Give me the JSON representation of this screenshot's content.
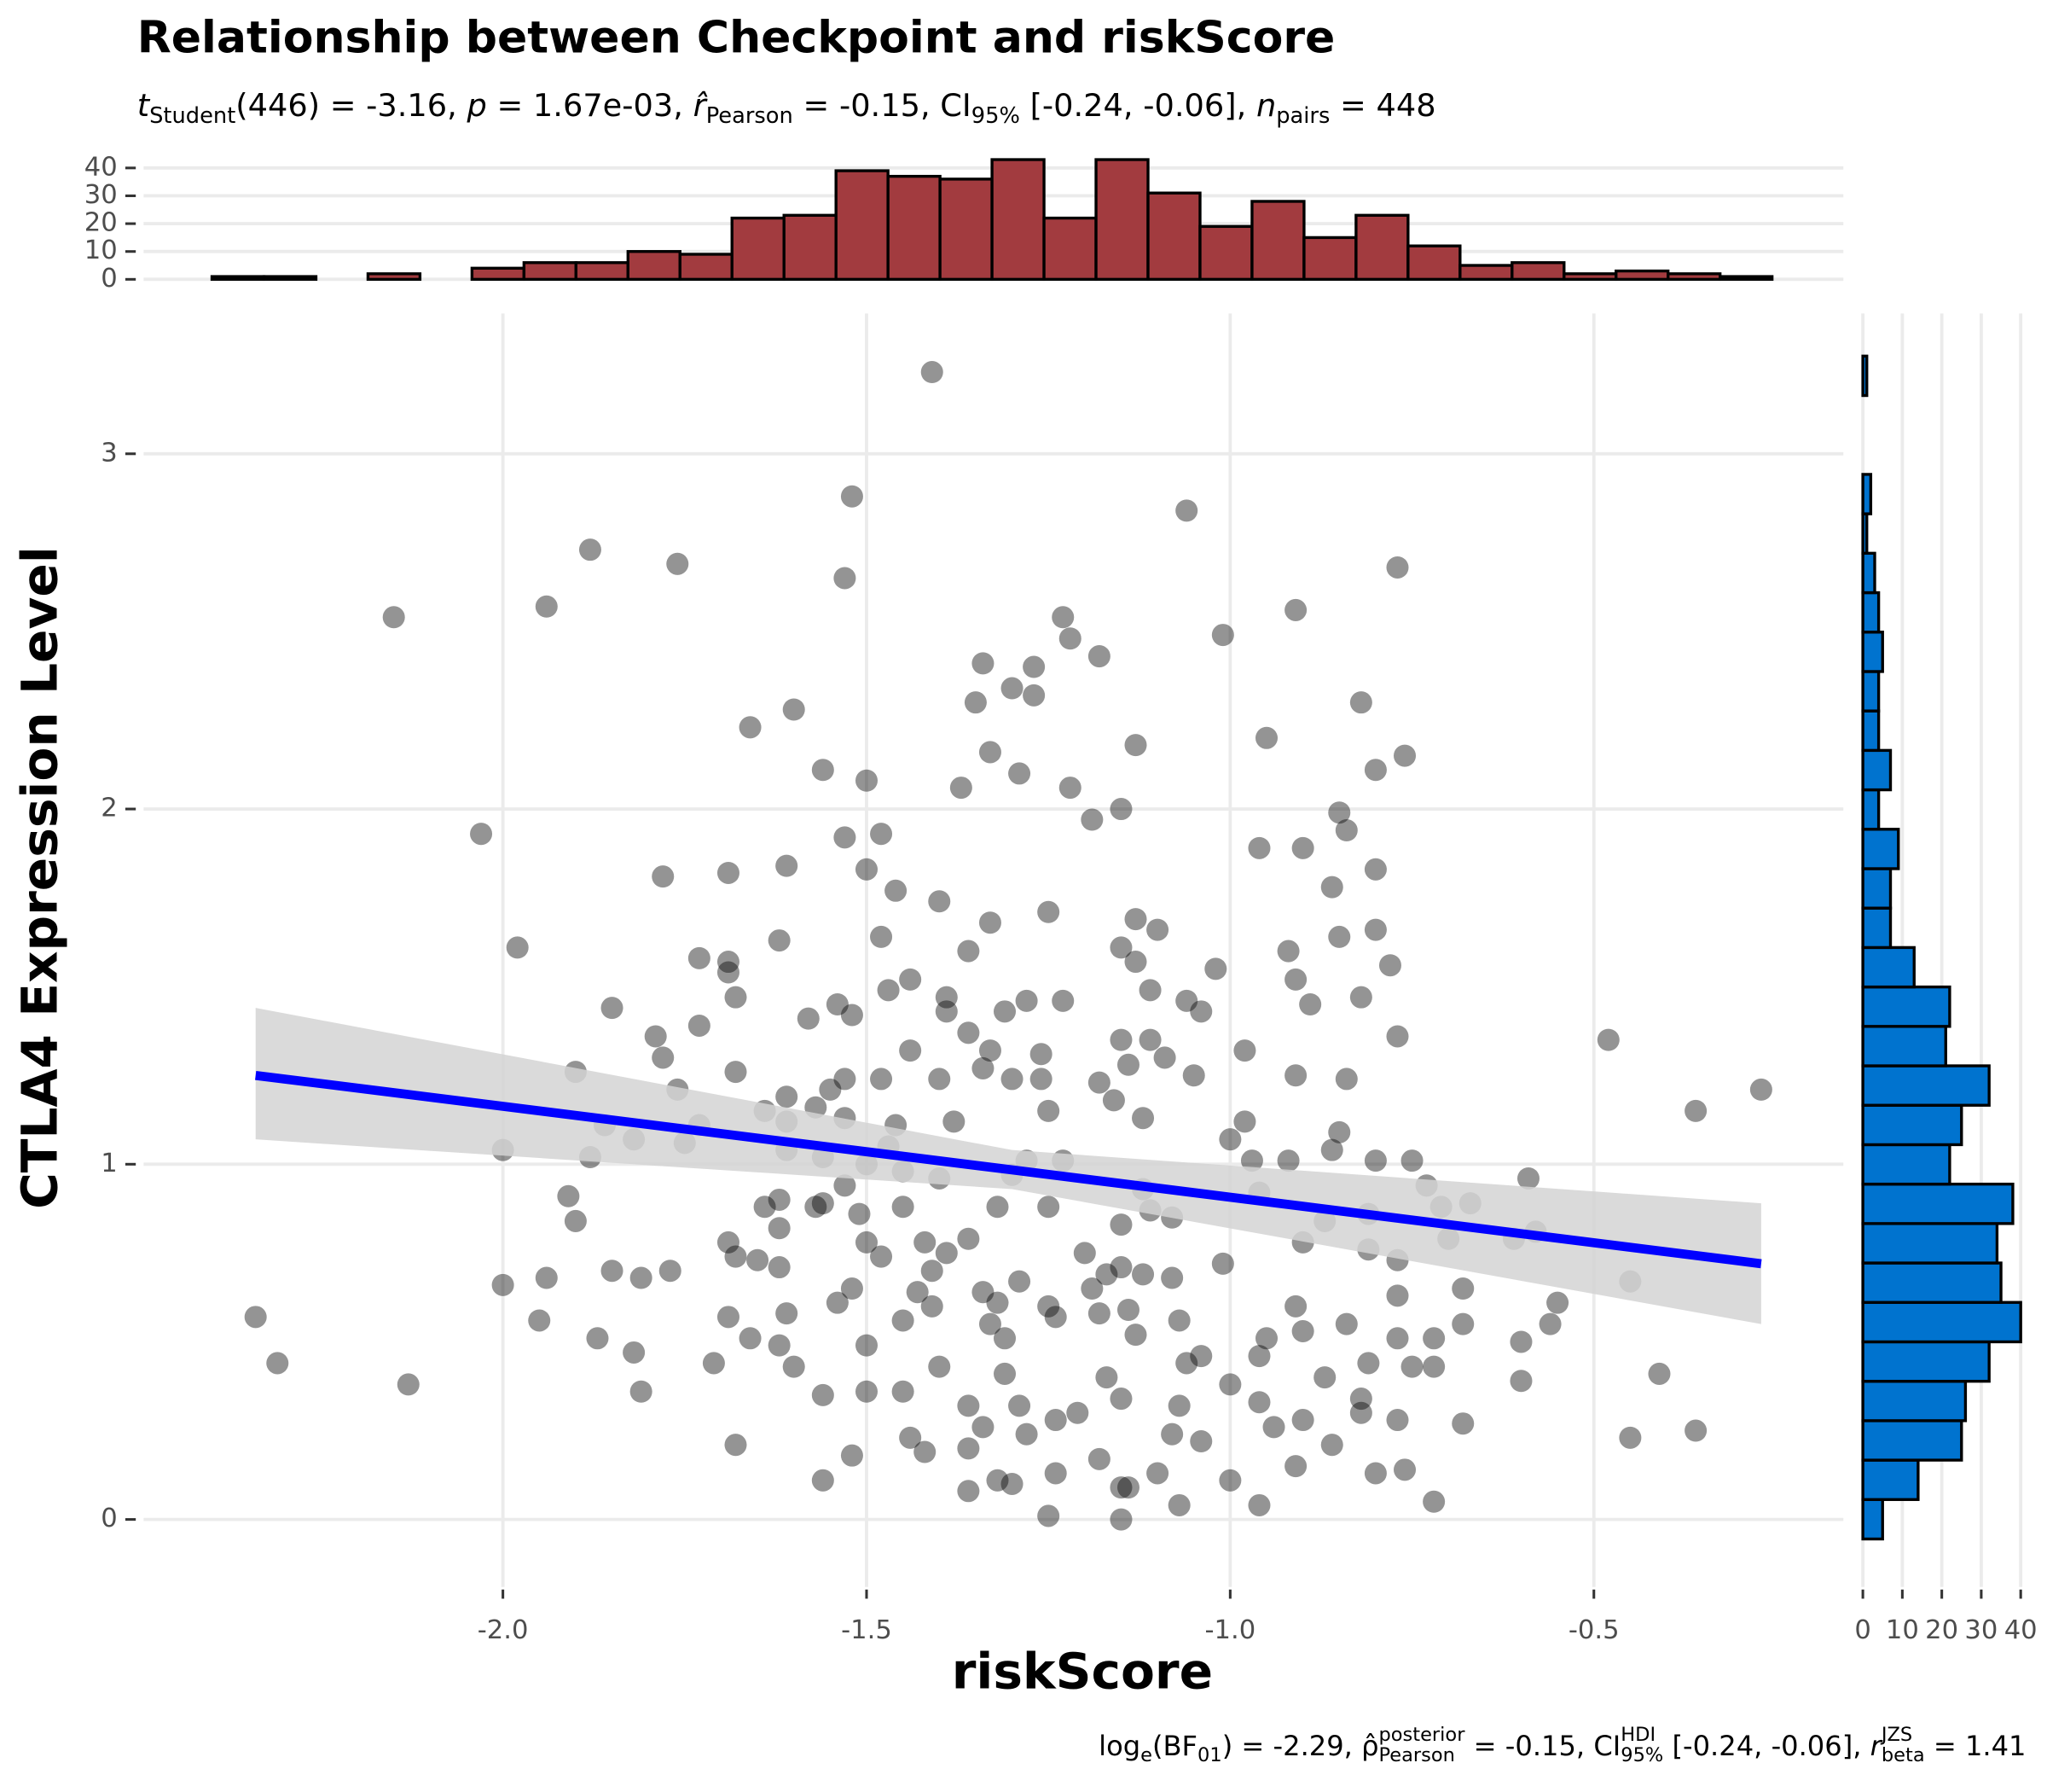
{
  "chart_data": [
    {
      "type": "scatter",
      "title": "Relationship between Checkpoint and riskScore",
      "subtitle": [
        {
          "t": "t",
          "i": true
        },
        {
          "t": "Student",
          "sub": true
        },
        {
          "t": "(446) = -3.16, "
        },
        {
          "t": "p",
          "i": true
        },
        {
          "t": " = 1.67e-03, "
        },
        {
          "t": "r̂",
          "i": true
        },
        {
          "t": "Pearson",
          "sub": true
        },
        {
          "t": " = -0.15, CI"
        },
        {
          "t": "95%",
          "sub": true
        },
        {
          "t": " [-0.24, -0.06], "
        },
        {
          "t": "n",
          "i": true
        },
        {
          "t": "pairs",
          "sub": true
        },
        {
          "t": " = 448"
        }
      ],
      "caption": [
        {
          "t": "log"
        },
        {
          "t": "e",
          "sub": true
        },
        {
          "t": "(BF"
        },
        {
          "t": "01",
          "sub": true
        },
        {
          "t": ") = -2.29, ρ̂"
        },
        {
          "t": "posterior",
          "sup": true
        },
        {
          "t": "Pearson",
          "sub": true,
          "stack": true
        },
        {
          "t": " = -0.15, CI"
        },
        {
          "t": "HDI",
          "sup": true
        },
        {
          "t": "95%",
          "sub": true,
          "stack": true
        },
        {
          "t": " [-0.24, -0.06], "
        },
        {
          "t": "r",
          "i": true
        },
        {
          "t": "JZS",
          "sup": true
        },
        {
          "t": "beta",
          "sub": true,
          "stack": true
        },
        {
          "t": " = 1.41"
        }
      ],
      "xlabel": "riskScore",
      "ylabel": "CTLA4 Expression Level",
      "color": "#000000",
      "x": [
        -1.41,
        -1.52,
        -1.06,
        -1.88,
        -1.76,
        -0.77,
        -1.53,
        -2.15,
        -1.94,
        -0.91,
        -1.23,
        -1.01,
        -1.22,
        -1.18,
        -1.34,
        -1.27,
        -1.3,
        -1.27,
        -1.35,
        -0.82,
        -1.6,
        -1.66,
        -0.95,
        -1.13,
        -1.33,
        -0.76,
        -0.8,
        -1.56,
        -1.5,
        -1.29,
        -1.37,
        -1.22,
        -1.15,
        -1.19,
        -0.85,
        -2.03,
        -1.48,
        -1.53,
        -0.84,
        -0.96,
        -0.9,
        -1.61,
        -1.5,
        -1.69,
        -0.8,
        -1.78,
        -1.46,
        -0.86,
        -1.4,
        -1.25,
        -1.13,
        -1.33,
        -1.1,
        -0.8,
        -1.98,
        -1.62,
        -1.48,
        -0.85,
        -1.36,
        -1.15,
        -0.92,
        -1.73,
        -1.69,
        -1.13,
        -0.78,
        -1.02,
        -1.44,
        -0.91,
        -1.69,
        -1.47,
        -1.68,
        -1.11,
        -1.39,
        -1.28,
        -1.23,
        -0.82,
        -1.54,
        -1.06,
        -1.85,
        -1.52,
        -1.39,
        -1.31,
        -1.04,
        -0.89,
        -1.58,
        -1.73,
        -1.36,
        -0.48,
        -1.79,
        -0.77,
        -1.15,
        -1.11,
        -0.98,
        -1.78,
        -1.44,
        -1.33,
        -1.26,
        -1.09,
        -1.14,
        -1.34,
        -1.9,
        -1.68,
        -0.91,
        -0.27,
        -1.05,
        -1.3,
        -1.4,
        -1.53,
        -1.48,
        -0.84,
        -1.26,
        -1.18,
        -1.76,
        -1.55,
        -1.61,
        -1.16,
        -0.36,
        -1.64,
        -1.57,
        -1.25,
        -1.12,
        -0.98,
        -1.86,
        -1.73,
        -1.46,
        -1.38,
        -1.61,
        -1.53,
        -0.85,
        -1.82,
        -1.75,
        -1.0,
        -2.0,
        -1.88,
        -1.61,
        -1.56,
        -1.47,
        -0.86,
        -1.5,
        -1.23,
        -1.28,
        -0.97,
        -0.92,
        -0.75,
        -0.8,
        -1.4,
        -1.3,
        -0.59,
        -1.45,
        -1.53,
        -0.73,
        -1.91,
        -1.62,
        -1.56,
        -1.12,
        -0.96,
        -1.64,
        -0.67,
        -1.57,
        -1.45,
        -1.32,
        -1.25,
        -0.71,
        -1.51,
        -1.11,
        -1.9,
        -1.62,
        -0.87,
        -1.15,
        -1.08,
        -0.81,
        -0.58,
        -1.36,
        -1.42,
        -1.69,
        -0.61,
        -0.7,
        -1.5,
        -0.9,
        -0.81,
        -1.39,
        -1.2,
        -1.48,
        -1.68,
        -1.65,
        -0.77,
        -1.01,
        -1.62,
        -1.15,
        -1.41,
        -1.77,
        -1.85,
        -1.17,
        -1.12,
        -1.08,
        -1.81,
        -1.94,
        -2.0,
        -1.29,
        -0.45,
        -0.68,
        -1.52,
        -1.43,
        -1.34,
        -1.19,
        -0.77,
        -2.34,
        -1.41,
        -1.32,
        -0.91,
        -1.25,
        -1.54,
        -0.55,
        -1.61,
        -1.95,
        -1.69,
        -1.45,
        -1.33,
        -1.24,
        -1.18,
        -1.14,
        -0.84,
        -0.68,
        -0.56,
        -1.07,
        -0.9,
        -1.87,
        -1.66,
        -1.31,
        -1.13,
        -0.77,
        -0.72,
        -0.95,
        -1.5,
        -0.6,
        -1.62,
        -1.82,
        -2.31,
        -1.71,
        -1.6,
        -1.4,
        -1.06,
        -1.04,
        -0.96,
        -0.75,
        -0.81,
        -0.72,
        -1.31,
        -1.17,
        -0.41,
        -1.0,
        -0.87,
        -2.13,
        -1.81,
        -1.56,
        -1.5,
        -1.45,
        -0.6,
        -1.15,
        -0.82,
        -1.07,
        -1.36,
        -1.29,
        -0.96,
        -1.21,
        -0.68,
        -0.77,
        -0.9,
        -0.94,
        -1.24,
        -1.34,
        -0.82,
        -1.28,
        -1.44,
        -1.08,
        -1.04,
        -0.45,
        -0.36,
        -1.68,
        -0.86,
        -1.36,
        -1.42,
        -1.52,
        -1.18,
        -0.91,
        -0.76,
        -1.24,
        -0.8,
        -1.1,
        -1.56,
        -1.32,
        -1.0,
        -1.3,
        -1.15,
        -1.14,
        -1.36,
        -0.72,
        -1.07,
        -0.96,
        -1.25,
        -1.15
      ],
      "values": [
        3.23,
        2.88,
        2.84,
        2.73,
        2.69,
        2.68,
        2.65,
        2.54,
        2.57,
        2.56,
        2.54,
        2.49,
        2.48,
        2.43,
        2.41,
        2.4,
        2.34,
        2.32,
        2.3,
        2.3,
        2.28,
        2.23,
        2.2,
        2.18,
        2.16,
        2.15,
        2.11,
        2.11,
        2.08,
        2.1,
        2.06,
        2.06,
        2.0,
        1.97,
        1.99,
        1.93,
        1.93,
        1.92,
        1.94,
        1.89,
        1.89,
        1.84,
        1.83,
        1.82,
        1.83,
        1.81,
        1.77,
        1.78,
        1.74,
        1.71,
        1.69,
        1.68,
        1.66,
        1.66,
        1.61,
        1.63,
        1.64,
        1.64,
        1.6,
        1.61,
        1.6,
        1.58,
        1.57,
        1.57,
        1.56,
        1.55,
        1.52,
        1.52,
        1.54,
        1.49,
        1.47,
        1.49,
        1.47,
        1.46,
        1.46,
        1.47,
        1.45,
        1.46,
        1.44,
        1.42,
        1.43,
        1.43,
        1.43,
        1.45,
        1.41,
        1.39,
        1.37,
        1.35,
        1.36,
        1.36,
        1.35,
        1.35,
        1.32,
        1.3,
        1.32,
        1.32,
        1.31,
        1.3,
        1.28,
        1.27,
        1.26,
        1.26,
        1.25,
        1.21,
        1.25,
        1.24,
        1.24,
        1.24,
        1.24,
        1.24,
        1.24,
        1.23,
        1.21,
        1.21,
        1.19,
        1.18,
        1.15,
        1.15,
        1.16,
        1.15,
        1.13,
        1.12,
        1.11,
        1.11,
        1.11,
        1.12,
        1.12,
        1.13,
        1.09,
        1.07,
        1.06,
        1.07,
        1.04,
        1.02,
        1.04,
        1.02,
        1.05,
        1.04,
        1.0,
        1.01,
        1.01,
        1.01,
        1.01,
        1.01,
        1.01,
        0.96,
        0.97,
        0.96,
        0.98,
        0.94,
        0.94,
        0.91,
        0.9,
        0.89,
        0.93,
        0.92,
        0.88,
        0.89,
        0.88,
        0.88,
        0.88,
        0.88,
        0.88,
        0.86,
        0.87,
        0.84,
        0.82,
        0.84,
        0.83,
        0.85,
        0.86,
        0.81,
        0.79,
        0.78,
        0.78,
        0.79,
        0.79,
        0.78,
        0.78,
        0.76,
        0.75,
        0.75,
        0.74,
        0.74,
        0.73,
        0.73,
        0.72,
        0.71,
        0.71,
        0.7,
        0.7,
        0.7,
        0.69,
        0.69,
        0.68,
        0.68,
        0.68,
        0.66,
        0.67,
        0.67,
        0.65,
        0.65,
        0.64,
        0.64,
        0.65,
        0.63,
        0.57,
        0.6,
        0.61,
        0.6,
        0.6,
        0.61,
        0.61,
        0.58,
        0.56,
        0.57,
        0.56,
        0.55,
        0.57,
        0.58,
        0.59,
        0.55,
        0.55,
        0.55,
        0.56,
        0.53,
        0.51,
        0.51,
        0.51,
        0.52,
        0.51,
        0.51,
        0.51,
        0.49,
        0.5,
        0.49,
        0.47,
        0.44,
        0.44,
        0.43,
        0.43,
        0.44,
        0.46,
        0.46,
        0.43,
        0.44,
        0.43,
        0.41,
        0.4,
        0.41,
        0.38,
        0.4,
        0.38,
        0.36,
        0.35,
        0.36,
        0.36,
        0.39,
        0.34,
        0.34,
        0.32,
        0.32,
        0.32,
        0.33,
        0.3,
        0.27,
        0.28,
        0.28,
        0.26,
        0.28,
        0.26,
        0.3,
        0.24,
        0.23,
        0.24,
        0.22,
        0.23,
        0.25,
        0.21,
        0.21,
        0.2,
        0.19,
        0.18,
        0.17,
        0.15,
        0.14,
        0.13,
        0.13,
        0.13,
        0.11,
        0.11,
        0.11,
        0.1,
        0.09,
        0.09,
        0.08,
        0.05,
        0.04,
        0.04,
        0.01,
        0.0
      ],
      "fit": {
        "x": [
          -2.34,
          -1.3,
          -0.27
        ],
        "y": [
          1.25,
          0.984,
          0.72
        ],
        "lower": [
          1.07,
          0.93,
          0.55
        ],
        "upper": [
          1.44,
          1.04,
          0.89
        ],
        "color": "#0000ff",
        "band_color": "#d3d3d3"
      },
      "xlim": [
        -2.494,
        -0.157
      ],
      "ylim": [
        -0.19,
        3.395
      ],
      "xticks": [
        {
          "value": -2,
          "label": "-2.0"
        },
        -1.5,
        {
          "value": -1,
          "label": "-1.0"
        },
        -0.5
      ],
      "yticks": [
        0,
        1,
        2,
        3
      ],
      "grid": true
    },
    {
      "type": "histogram",
      "orientation": "vertical",
      "bins": [
        -2.4,
        -2.3285,
        -2.257,
        -2.1855,
        -2.114,
        -2.0425,
        -1.971,
        -1.8995,
        -1.828,
        -1.7565,
        -1.685,
        -1.6135,
        -1.542,
        -1.4705,
        -1.399,
        -1.3275,
        -1.256,
        -1.1845,
        -1.113,
        -1.0415,
        -0.97,
        -0.8985,
        -0.827,
        -0.7555,
        -0.684,
        -0.6125,
        -0.541,
        -0.4695,
        -0.398,
        -0.3265,
        -0.255
      ],
      "values": [
        1,
        1,
        0,
        2,
        0,
        4,
        6,
        6,
        10,
        9,
        22,
        23,
        39,
        37,
        36,
        43,
        22,
        43,
        31,
        19,
        28,
        15,
        23,
        12,
        5,
        6,
        2,
        3,
        2,
        1
      ],
      "color": "#a23b3f",
      "ylim": [
        -1,
        44.5
      ],
      "yticks": [
        0,
        10,
        20,
        30,
        40
      ],
      "grid": true
    },
    {
      "type": "histogram",
      "orientation": "horizontal",
      "bins": [
        -0.055,
        0.056,
        0.167,
        0.278,
        0.389,
        0.5,
        0.611,
        0.722,
        0.833,
        0.944,
        1.055,
        1.166,
        1.277,
        1.388,
        1.499,
        1.61,
        1.721,
        1.832,
        1.943,
        2.054,
        2.165,
        2.276,
        2.387,
        2.498,
        2.609,
        2.72,
        2.831,
        2.942,
        3.053,
        3.164,
        3.275
      ],
      "values": [
        5,
        14,
        25,
        26,
        32,
        40,
        35,
        34,
        38,
        22,
        25,
        32,
        21,
        22,
        13,
        7,
        7,
        9,
        4,
        7,
        4,
        4,
        5,
        4,
        3,
        1,
        2,
        0,
        0,
        1
      ],
      "color": "#0073cf",
      "xlim": [
        -2.3,
        41.7
      ],
      "xticks": [
        0,
        10,
        20,
        30,
        40
      ],
      "grid": true
    }
  ]
}
